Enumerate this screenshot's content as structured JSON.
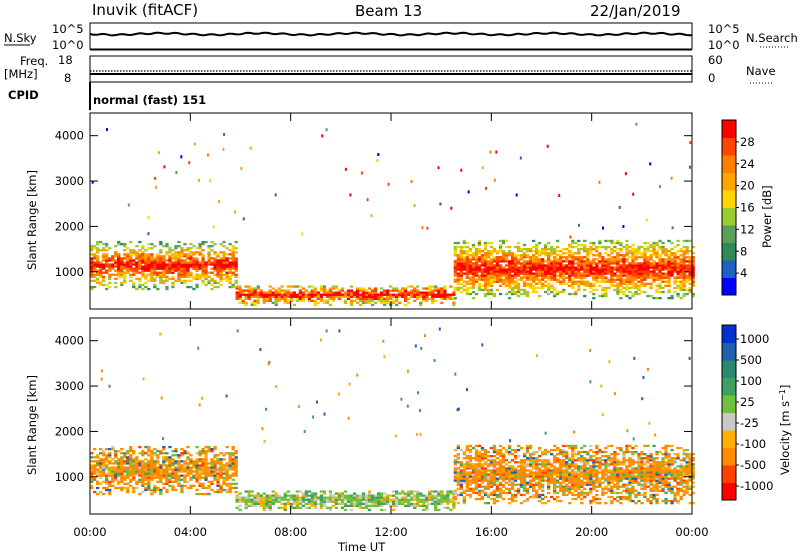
{
  "header": {
    "station": "Inuvik (fitACF)",
    "beam": "Beam 13",
    "date": "22/Jan/2019"
  },
  "summary": {
    "nsky_label": "N.Sky",
    "nsearch_label": "N.Search",
    "nsky_ticks": [
      "10^5",
      "10^0"
    ],
    "nsearch_ticks": [
      "10^5",
      "10^0"
    ],
    "freq_label_1": "Freq.",
    "freq_label_2": "[MHz]",
    "freq_ticks": [
      "18",
      "8"
    ],
    "nave_label": "Nave",
    "nave_ticks": [
      "60",
      "0"
    ],
    "cpid_label": "CPID",
    "cpid_value": "normal (fast) 151"
  },
  "colors": {
    "power": [
      "#0000ff",
      "#1f5fc0",
      "#2e8b57",
      "#5aa05a",
      "#9acd32",
      "#ffd700",
      "#ffa500",
      "#ff7f00",
      "#ff4500",
      "#ff0000"
    ],
    "velocity": [
      "#ff0000",
      "#ff4000",
      "#ff8c00",
      "#ffb000",
      "#c8c8c8",
      "#70c040",
      "#40a060",
      "#2a8a70",
      "#2060b0",
      "#0030d0"
    ],
    "ground_scatter": "#b4b4b4"
  },
  "chart_data": [
    {
      "type": "heatmap",
      "parameter": "Power",
      "ylabel": "Slant Range [km]",
      "xlabel": "Time UT",
      "x_range_hours": [
        0,
        24
      ],
      "ylim": [
        180,
        4500
      ],
      "yticks": [
        1000,
        2000,
        3000,
        4000
      ],
      "xtick_labels": [
        "00:00",
        "04:00",
        "08:00",
        "12:00",
        "16:00",
        "20:00",
        "00:00"
      ],
      "colorbar": {
        "label": "Power [dB]",
        "range": [
          0,
          32
        ],
        "ticks": [
          "4",
          "8",
          "12",
          "16",
          "20",
          "24",
          "28"
        ]
      },
      "regions": [
        {
          "t0": 0.0,
          "t1": 5.8,
          "r0": 600,
          "r1": 1650,
          "dominant": "28+ dB near 700-1200 km"
        },
        {
          "t0": 5.8,
          "t1": 14.5,
          "r0": 250,
          "r1": 700,
          "dominant": "12-28 dB"
        },
        {
          "t0": 14.5,
          "t1": 24.0,
          "r0": 400,
          "r1": 1700,
          "dominant": "16-28 dB"
        }
      ]
    },
    {
      "type": "heatmap",
      "parameter": "Velocity",
      "ylabel": "Slant Range [km]",
      "xlabel": "Time UT",
      "x_range_hours": [
        0,
        24
      ],
      "ylim": [
        180,
        4500
      ],
      "yticks": [
        1000,
        2000,
        3000,
        4000
      ],
      "xtick_labels": [
        "00:00",
        "04:00",
        "08:00",
        "12:00",
        "16:00",
        "20:00",
        "00:00"
      ],
      "colorbar": {
        "label": "Velocity [m s^-1]",
        "ticks": [
          "1000",
          "500",
          "100",
          "25",
          "-25",
          "-100",
          "-500",
          "-1000"
        ]
      },
      "regions": [
        {
          "t0": 0.0,
          "t1": 5.8,
          "r0": 600,
          "r1": 1650,
          "dominant": "-100 to -500 m/s"
        },
        {
          "t0": 5.8,
          "t1": 14.5,
          "r0": 250,
          "r1": 700,
          "dominant": "-25 to 100 m/s"
        },
        {
          "t0": 14.5,
          "t1": 24.0,
          "r0": 400,
          "r1": 1700,
          "dominant": "-100 to -500 m/s"
        }
      ]
    }
  ]
}
